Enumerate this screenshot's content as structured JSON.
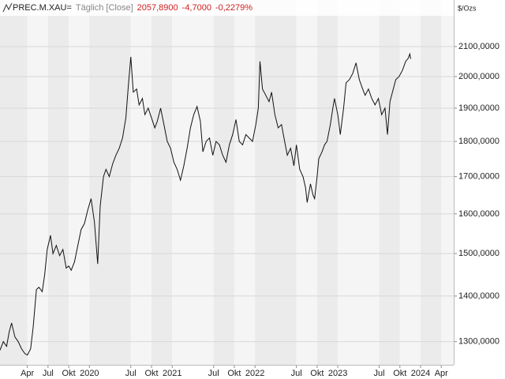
{
  "header": {
    "symbol": "PREC.M.XAU=",
    "mode": "Täglich [Close]",
    "last": "2057,8900",
    "change": "-4,7000",
    "change_pct": "-0,2279%"
  },
  "chart_data": {
    "type": "line",
    "y_unit": "$/Ozs",
    "log": true,
    "grid": true,
    "color": "#111111",
    "xlim": [
      2018.92,
      2024.4
    ],
    "xticks": [
      {
        "value": 2019.25,
        "label": "Apr"
      },
      {
        "value": 2019.5,
        "label": "Jul"
      },
      {
        "value": 2019.75,
        "label": "Okt"
      },
      2020,
      {
        "value": 2020.5,
        "label": "Jul"
      },
      {
        "value": 2020.75,
        "label": "Okt"
      },
      2021,
      {
        "value": 2021.5,
        "label": "Jul"
      },
      {
        "value": 2021.75,
        "label": "Okt"
      },
      2022,
      {
        "value": 2022.5,
        "label": "Jul"
      },
      {
        "value": 2022.75,
        "label": "Okt"
      },
      2023,
      {
        "value": 2023.5,
        "label": "Jul"
      },
      {
        "value": 2023.75,
        "label": "Okt"
      },
      2024,
      {
        "value": 2024.25,
        "label": "Apr"
      }
    ],
    "ylim": [
      1252,
      2265
    ],
    "yticks": [
      {
        "value": 1300,
        "label": "1300,0000"
      },
      {
        "value": 1400,
        "label": "1400,0000"
      },
      {
        "value": 1500,
        "label": "1500,0000"
      },
      {
        "value": 1600,
        "label": "1600,0000"
      },
      {
        "value": 1700,
        "label": "1700,0000"
      },
      {
        "value": 1800,
        "label": "1800,0000"
      },
      {
        "value": 1900,
        "label": "1900,0000"
      },
      {
        "value": 2000,
        "label": "2000,0000"
      },
      {
        "value": 2100,
        "label": "2100,0000"
      }
    ],
    "series": [
      {
        "name": "PREC.M.XAU=",
        "color": "#111111",
        "x": [
          2018.92,
          2018.96,
          2019.0,
          2019.03,
          2019.06,
          2019.1,
          2019.14,
          2019.18,
          2019.22,
          2019.25,
          2019.29,
          2019.32,
          2019.36,
          2019.39,
          2019.43,
          2019.46,
          2019.49,
          2019.53,
          2019.56,
          2019.6,
          2019.64,
          2019.68,
          2019.72,
          2019.75,
          2019.78,
          2019.82,
          2019.86,
          2019.9,
          2019.94,
          2019.98,
          2020.02,
          2020.06,
          2020.1,
          2020.13,
          2020.17,
          2020.2,
          2020.24,
          2020.28,
          2020.32,
          2020.36,
          2020.4,
          2020.44,
          2020.47,
          2020.5,
          2020.53,
          2020.57,
          2020.6,
          2020.64,
          2020.67,
          2020.71,
          2020.75,
          2020.79,
          2020.82,
          2020.86,
          2020.9,
          2020.94,
          2020.98,
          2021.02,
          2021.06,
          2021.1,
          2021.14,
          2021.18,
          2021.22,
          2021.26,
          2021.3,
          2021.34,
          2021.37,
          2021.41,
          2021.45,
          2021.49,
          2021.53,
          2021.57,
          2021.61,
          2021.65,
          2021.69,
          2021.73,
          2021.77,
          2021.81,
          2021.85,
          2021.89,
          2021.93,
          2021.97,
          2022.01,
          2022.04,
          2022.06,
          2022.09,
          2022.13,
          2022.17,
          2022.2,
          2022.24,
          2022.28,
          2022.32,
          2022.35,
          2022.39,
          2022.43,
          2022.47,
          2022.5,
          2022.54,
          2022.58,
          2022.61,
          2022.63,
          2022.67,
          2022.7,
          2022.72,
          2022.75,
          2022.77,
          2022.81,
          2022.84,
          2022.87,
          2022.91,
          2022.94,
          2022.96,
          2023.0,
          2023.03,
          2023.07,
          2023.1,
          2023.14,
          2023.18,
          2023.22,
          2023.26,
          2023.3,
          2023.33,
          2023.37,
          2023.41,
          2023.45,
          2023.49,
          2023.53,
          2023.57,
          2023.6,
          2023.63,
          2023.67,
          2023.7,
          2023.74,
          2023.78,
          2023.82,
          2023.85,
          2023.87,
          2023.88
        ],
        "values": [
          1282,
          1300,
          1290,
          1320,
          1340,
          1310,
          1300,
          1285,
          1275,
          1272,
          1285,
          1330,
          1415,
          1420,
          1410,
          1450,
          1510,
          1545,
          1500,
          1520,
          1495,
          1510,
          1465,
          1470,
          1460,
          1480,
          1520,
          1560,
          1575,
          1610,
          1640,
          1580,
          1475,
          1620,
          1700,
          1720,
          1700,
          1735,
          1760,
          1780,
          1810,
          1870,
          1970,
          2065,
          1950,
          1960,
          1910,
          1930,
          1880,
          1900,
          1870,
          1840,
          1860,
          1900,
          1850,
          1800,
          1780,
          1740,
          1720,
          1690,
          1730,
          1780,
          1840,
          1880,
          1905,
          1860,
          1770,
          1800,
          1810,
          1760,
          1800,
          1790,
          1760,
          1740,
          1790,
          1820,
          1865,
          1800,
          1790,
          1820,
          1810,
          1800,
          1850,
          1900,
          2050,
          1960,
          1940,
          1920,
          1950,
          1880,
          1840,
          1850,
          1810,
          1760,
          1780,
          1730,
          1790,
          1720,
          1700,
          1670,
          1630,
          1680,
          1650,
          1640,
          1700,
          1750,
          1770,
          1790,
          1800,
          1850,
          1900,
          1930,
          1880,
          1820,
          1900,
          1980,
          1990,
          2010,
          2045,
          1990,
          1960,
          1940,
          1960,
          1930,
          1910,
          1930,
          1880,
          1900,
          1820,
          1920,
          1960,
          1990,
          2000,
          2020,
          2050,
          2060,
          2075,
          2058
        ]
      }
    ]
  }
}
